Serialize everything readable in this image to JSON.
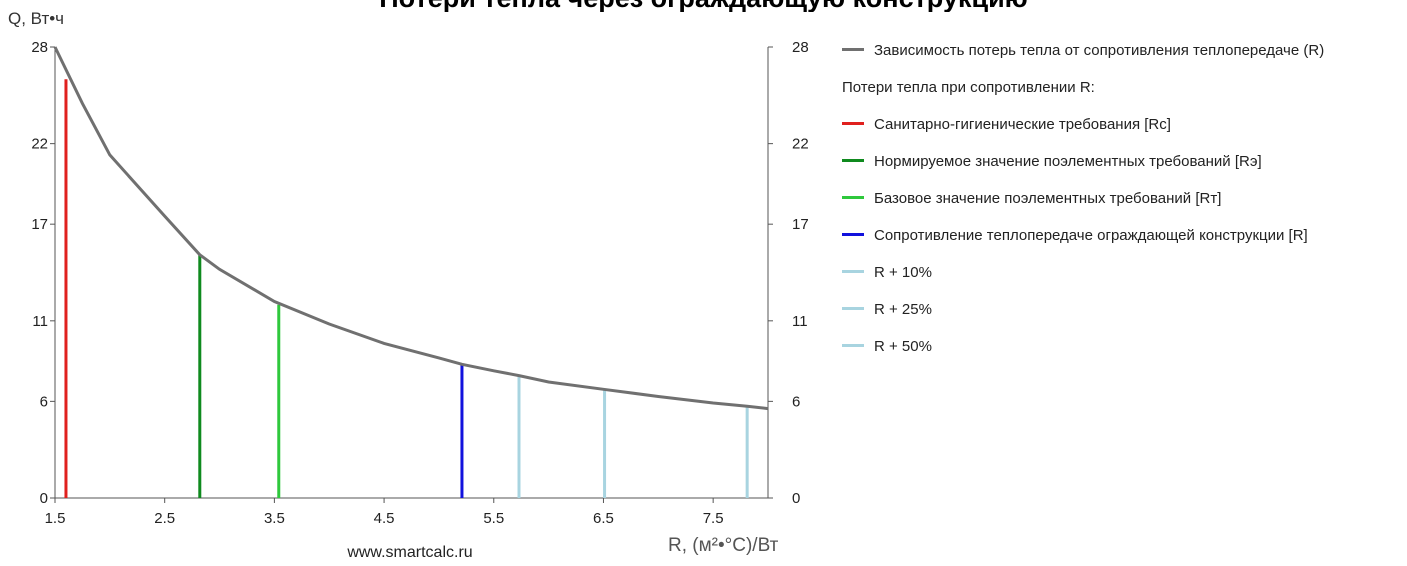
{
  "header": {
    "title": "Потери тепла через ограждающую конструкцию"
  },
  "chart_data": {
    "type": "line",
    "title": "",
    "ylabel": "Q, Вт•ч",
    "xlabel": "R, (м²•°С)/Вт",
    "watermark": "www.smartcalc.ru",
    "xlim": [
      1.5,
      8.0
    ],
    "ylim": [
      0,
      28
    ],
    "xticks": [
      1.5,
      2.5,
      3.5,
      4.5,
      5.5,
      6.5,
      7.5
    ],
    "xtick_labels": [
      "1.5",
      "2.5",
      "3.5",
      "4.5",
      "5.5",
      "6.5",
      "7.5"
    ],
    "yticks": [
      0,
      6,
      11,
      17,
      22,
      28
    ],
    "ytick_labels": [
      "0",
      "6",
      "11",
      "17",
      "22",
      "28"
    ],
    "grid": false,
    "legend_position": "right",
    "curve": {
      "name": "Зависимость потерь тепла от сопротивления теплопередаче (R)",
      "color": "#707070",
      "points": [
        [
          1.5,
          28.0
        ],
        [
          1.75,
          24.5
        ],
        [
          2.0,
          21.3
        ],
        [
          2.5,
          17.5
        ],
        [
          2.82,
          15.1
        ],
        [
          3.0,
          14.2
        ],
        [
          3.5,
          12.2
        ],
        [
          4.0,
          10.8
        ],
        [
          4.5,
          9.6
        ],
        [
          5.0,
          8.7
        ],
        [
          5.21,
          8.3
        ],
        [
          5.5,
          7.9
        ],
        [
          5.73,
          7.6
        ],
        [
          6.0,
          7.2
        ],
        [
          6.5,
          6.75
        ],
        [
          7.0,
          6.3
        ],
        [
          7.5,
          5.9
        ],
        [
          7.81,
          5.7
        ],
        [
          8.0,
          5.55
        ]
      ]
    },
    "legend_header": "Потери тепла при сопротивлении R:",
    "series": [
      {
        "name": "Санитарно-гигиенические требования [Rс]",
        "color": "#e0201e",
        "x": 1.6,
        "y": 26.0
      },
      {
        "name": "Нормируемое значение поэлементных требований [Rэ]",
        "color": "#0f8a1e",
        "x": 2.82,
        "y": 15.1
      },
      {
        "name": "Базовое значение поэлементных требований [Rт]",
        "color": "#2ec83c",
        "x": 3.54,
        "y": 12.0
      },
      {
        "name": "Сопротивление теплопередаче ограждающей конструкции [R]",
        "color": "#1111dd",
        "x": 5.21,
        "y": 8.3
      },
      {
        "name": "R + 10%",
        "color": "#a8d4e0",
        "x": 5.73,
        "y": 7.6
      },
      {
        "name": "R + 25%",
        "color": "#a8d4e0",
        "x": 6.51,
        "y": 6.8
      },
      {
        "name": "R + 50%",
        "color": "#a8d4e0",
        "x": 7.81,
        "y": 5.7
      }
    ]
  }
}
